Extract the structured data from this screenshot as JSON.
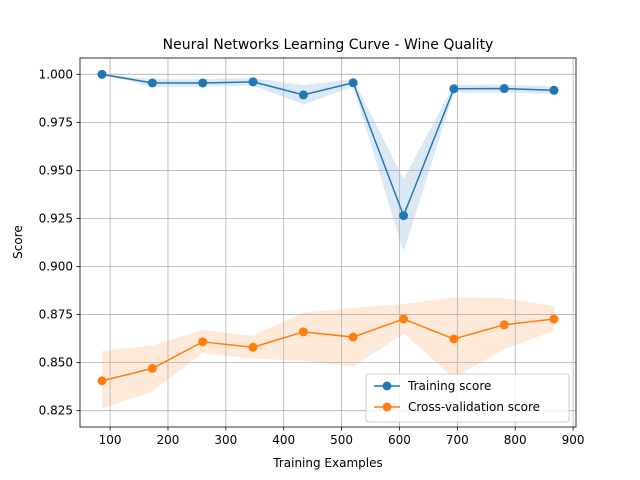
{
  "chart_data": {
    "type": "line",
    "title": "Neural Networks Learning Curve - Wine Quality",
    "xlabel": "Training Examples",
    "ylabel": "Score",
    "xlim": [
      48,
      905
    ],
    "ylim": [
      0.8165,
      1.0085
    ],
    "xticks": [
      100,
      200,
      300,
      400,
      500,
      600,
      700,
      800,
      900
    ],
    "yticks": [
      0.825,
      0.85,
      0.875,
      0.9,
      0.925,
      0.95,
      0.975,
      1.0
    ],
    "ytick_labels": [
      "0.825",
      "0.850",
      "0.875",
      "0.900",
      "0.925",
      "0.950",
      "0.975",
      "1.000"
    ],
    "grid": true,
    "legend_position": "lower-right",
    "x": [
      86,
      173,
      260,
      347,
      434,
      520,
      607,
      694,
      781,
      867
    ],
    "series": [
      {
        "name": "Training score",
        "color": "#1f77b4",
        "band_color": "#dce9f5",
        "values": [
          1.0,
          0.9955,
          0.9955,
          0.9961,
          0.9893,
          0.9956,
          0.9265,
          0.9925,
          0.9926,
          0.9917
        ],
        "band_lower": [
          1.0,
          0.9935,
          0.9935,
          0.9941,
          0.9843,
          0.9936,
          0.9075,
          0.9905,
          0.9906,
          0.9897
        ],
        "band_upper": [
          1.0,
          0.9975,
          0.9975,
          0.9981,
          0.9943,
          0.9976,
          0.9455,
          0.9945,
          0.9946,
          0.9937
        ]
      },
      {
        "name": "Cross-validation score",
        "color": "#ff7f0e",
        "band_color": "#ffe9d8",
        "values": [
          0.8405,
          0.847,
          0.8608,
          0.858,
          0.866,
          0.8633,
          0.8727,
          0.8623,
          0.8697,
          0.8727
        ],
        "band_lower": [
          0.826,
          0.835,
          0.855,
          0.852,
          0.851,
          0.848,
          0.865,
          0.842,
          0.857,
          0.8665
        ],
        "band_upper": [
          0.856,
          0.859,
          0.867,
          0.864,
          0.876,
          0.8785,
          0.8805,
          0.884,
          0.8835,
          0.8795
        ]
      }
    ]
  }
}
